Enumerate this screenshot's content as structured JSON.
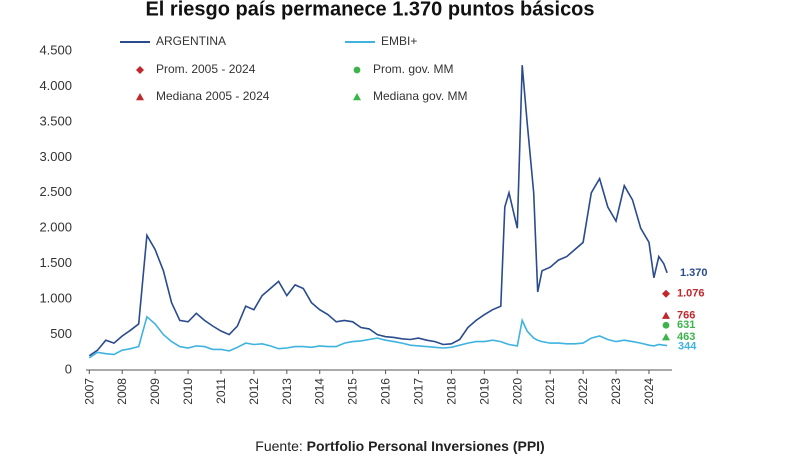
{
  "chart_data": {
    "type": "line",
    "title": "El riesgo país permanece 1.370 puntos básicos",
    "source_prefix": "Fuente:",
    "source": "Portfolio Personal Inversiones (PPI)",
    "x": [
      2007,
      2007.25,
      2007.5,
      2007.75,
      2008,
      2008.25,
      2008.5,
      2008.75,
      2009,
      2009.25,
      2009.5,
      2009.75,
      2010,
      2010.25,
      2010.5,
      2010.75,
      2011,
      2011.25,
      2011.5,
      2011.75,
      2012,
      2012.25,
      2012.5,
      2012.75,
      2013,
      2013.25,
      2013.5,
      2013.75,
      2014,
      2014.25,
      2014.5,
      2014.75,
      2015,
      2015.25,
      2015.5,
      2015.75,
      2016,
      2016.25,
      2016.5,
      2016.75,
      2017,
      2017.25,
      2017.5,
      2017.75,
      2018,
      2018.25,
      2018.5,
      2018.75,
      2019,
      2019.25,
      2019.5,
      2019.62,
      2019.75,
      2020,
      2020.15,
      2020.3,
      2020.5,
      2020.62,
      2020.75,
      2021,
      2021.25,
      2021.5,
      2021.75,
      2022,
      2022.25,
      2022.5,
      2022.75,
      2023,
      2023.25,
      2023.5,
      2023.75,
      2024,
      2024.15,
      2024.3,
      2024.45,
      2024.55
    ],
    "series": [
      {
        "name": "ARGENTINA",
        "color": "#2a4b8d",
        "end_label": "1.370",
        "values": [
          200,
          280,
          420,
          380,
          480,
          560,
          650,
          1900,
          1700,
          1400,
          950,
          700,
          680,
          800,
          700,
          620,
          550,
          500,
          620,
          900,
          850,
          1050,
          1150,
          1250,
          1050,
          1200,
          1150,
          950,
          850,
          780,
          680,
          700,
          680,
          600,
          580,
          500,
          470,
          460,
          440,
          430,
          450,
          420,
          400,
          360,
          370,
          430,
          600,
          700,
          780,
          850,
          900,
          2300,
          2500,
          2000,
          4300,
          3500,
          2500,
          1100,
          1400,
          1450,
          1550,
          1600,
          1700,
          1800,
          2500,
          2700,
          2300,
          2100,
          2600,
          2400,
          2000,
          1800,
          1300,
          1600,
          1500,
          1370
        ]
      },
      {
        "name": "EMBI+",
        "color": "#3fb3e0",
        "values": [
          170,
          250,
          230,
          220,
          280,
          300,
          330,
          750,
          650,
          500,
          400,
          330,
          310,
          340,
          330,
          290,
          290,
          270,
          320,
          380,
          360,
          370,
          340,
          300,
          310,
          330,
          330,
          320,
          340,
          330,
          330,
          380,
          400,
          410,
          430,
          450,
          420,
          400,
          380,
          350,
          340,
          330,
          320,
          310,
          320,
          350,
          380,
          400,
          400,
          420,
          400,
          380,
          360,
          340,
          700,
          550,
          450,
          420,
          400,
          380,
          380,
          370,
          370,
          380,
          450,
          480,
          430,
          400,
          420,
          400,
          380,
          350,
          340,
          360,
          350,
          344
        ]
      }
    ],
    "reference_points": [
      {
        "name": "Prom. 2005 - 2024",
        "value": 1076,
        "label": "1.076",
        "color": "#c0282d",
        "marker": "diamond"
      },
      {
        "name": "Mediana 2005 - 2024",
        "value": 766,
        "color": "#c0282d",
        "marker": "triangle"
      },
      {
        "name": "Prom. gov. MM",
        "value": 631,
        "color": "#3cb44b",
        "marker": "circle"
      },
      {
        "name": "Mediana gov. MM",
        "value": 463,
        "color": "#3cb44b",
        "marker": "triangle"
      }
    ],
    "xlim": [
      2006.9,
      2024.7
    ],
    "xticks": [
      2007,
      2008,
      2009,
      2010,
      2011,
      2012,
      2013,
      2014,
      2015,
      2016,
      2017,
      2018,
      2019,
      2020,
      2021,
      2022,
      2023,
      2024
    ],
    "ylim": [
      0,
      4500
    ],
    "yticks": [
      0,
      500,
      {
        "value": 1000,
        "label": "1.000"
      },
      {
        "value": 1500,
        "label": "1.500"
      },
      {
        "value": 2000,
        "label": "2.000"
      },
      {
        "value": 2500,
        "label": "2.500"
      },
      {
        "value": 3000,
        "label": "3.000"
      },
      {
        "value": 3500,
        "label": "3.500"
      },
      {
        "value": 4000,
        "label": "4.000"
      },
      {
        "value": 4500,
        "label": "4.500"
      }
    ],
    "grid": false
  }
}
